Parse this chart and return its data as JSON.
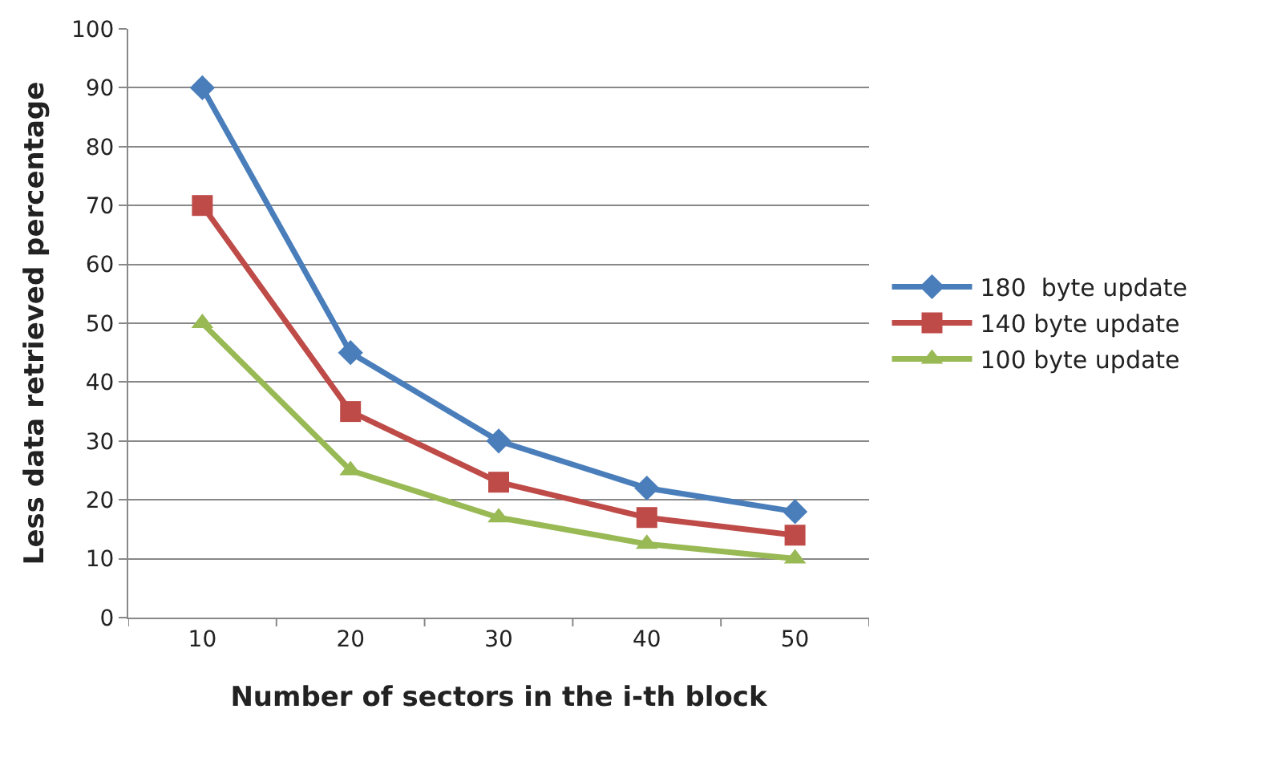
{
  "chart_data": {
    "type": "line",
    "xlabel": "Number of sectors in the i-th block",
    "ylabel": "Less data retrieved percentage",
    "categories": [
      "10",
      "20",
      "30",
      "40",
      "50"
    ],
    "ylim": [
      0,
      100
    ],
    "yticks": [
      0,
      10,
      20,
      30,
      40,
      50,
      60,
      70,
      80,
      90,
      100
    ],
    "grid": "y",
    "legend": "right",
    "line_style": "solid",
    "series": [
      {
        "name": "180  byte update",
        "color": "#4a7ebb",
        "marker": "diamond",
        "values": [
          90,
          45,
          30,
          22,
          18
        ]
      },
      {
        "name": "140 byte update",
        "color": "#be4b48",
        "marker": "square",
        "values": [
          70,
          35,
          23,
          17,
          14
        ]
      },
      {
        "name": "100 byte update",
        "color": "#98b954",
        "marker": "triangle",
        "values": [
          50,
          25,
          17,
          12.5,
          10
        ]
      }
    ]
  }
}
